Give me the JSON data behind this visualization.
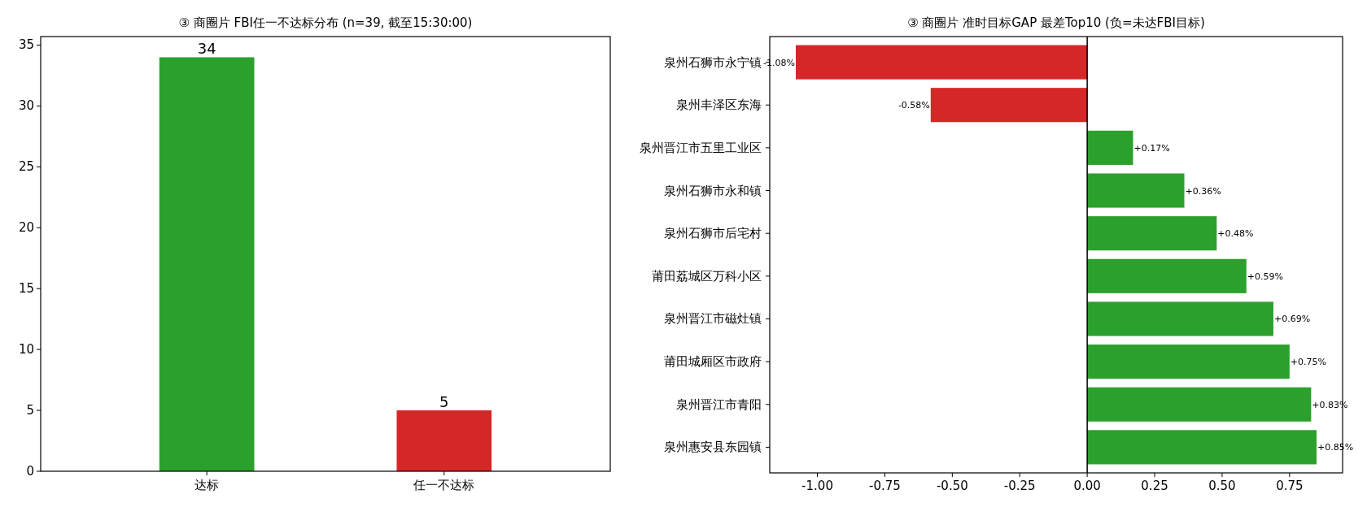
{
  "chart_data": [
    {
      "type": "bar",
      "title": "③ 商圈片 FBI任一不达标分布 (n=39, 截至15:30:00)",
      "categories": [
        "达标",
        "任一不达标"
      ],
      "values": [
        34,
        5
      ],
      "colors": [
        "#2ca02c",
        "#d62728"
      ],
      "ylim": [
        0,
        35.7
      ],
      "yticks": [
        0,
        5,
        10,
        15,
        20,
        25,
        30,
        35
      ],
      "data_labels": true
    },
    {
      "type": "bar",
      "orientation": "horizontal",
      "title": "③ 商圈片 准时目标GAP 最差Top10 (负=未达FBI目标)",
      "categories": [
        "泉州石狮市永宁镇",
        "泉州丰泽区东海",
        "泉州晋江市五里工业区",
        "泉州石狮市永和镇",
        "泉州石狮市后宅村",
        "莆田荔城区万科小区",
        "泉州晋江市磁灶镇",
        "莆田城厢区市政府",
        "泉州晋江市青阳",
        "泉州惠安县东园镇"
      ],
      "values": [
        -1.08,
        -0.58,
        0.17,
        0.36,
        0.48,
        0.59,
        0.69,
        0.75,
        0.83,
        0.85
      ],
      "colors": [
        "#d62728",
        "#d62728",
        "#2ca02c",
        "#2ca02c",
        "#2ca02c",
        "#2ca02c",
        "#2ca02c",
        "#2ca02c",
        "#2ca02c",
        "#2ca02c"
      ],
      "value_labels": [
        "-1.08%",
        "-0.58%",
        "+0.17%",
        "+0.36%",
        "+0.48%",
        "+0.59%",
        "+0.69%",
        "+0.75%",
        "+0.83%",
        "+0.85%"
      ],
      "xlim": [
        -1.1765,
        0.9465
      ],
      "xticks": [
        {
          "value": -1,
          "label": "-1.00"
        },
        {
          "value": -0.75,
          "label": "-0.75"
        },
        {
          "value": -0.5,
          "label": "-0.50"
        },
        {
          "value": -0.25,
          "label": "-0.25"
        },
        {
          "value": 0,
          "label": "0.00"
        },
        {
          "value": 0.25,
          "label": "0.25"
        },
        {
          "value": 0.5,
          "label": "0.50"
        },
        {
          "value": 0.75,
          "label": "0.75"
        }
      ],
      "ref_lines": [
        {
          "axis": "x",
          "value": 0,
          "color": "#000000"
        }
      ]
    }
  ]
}
